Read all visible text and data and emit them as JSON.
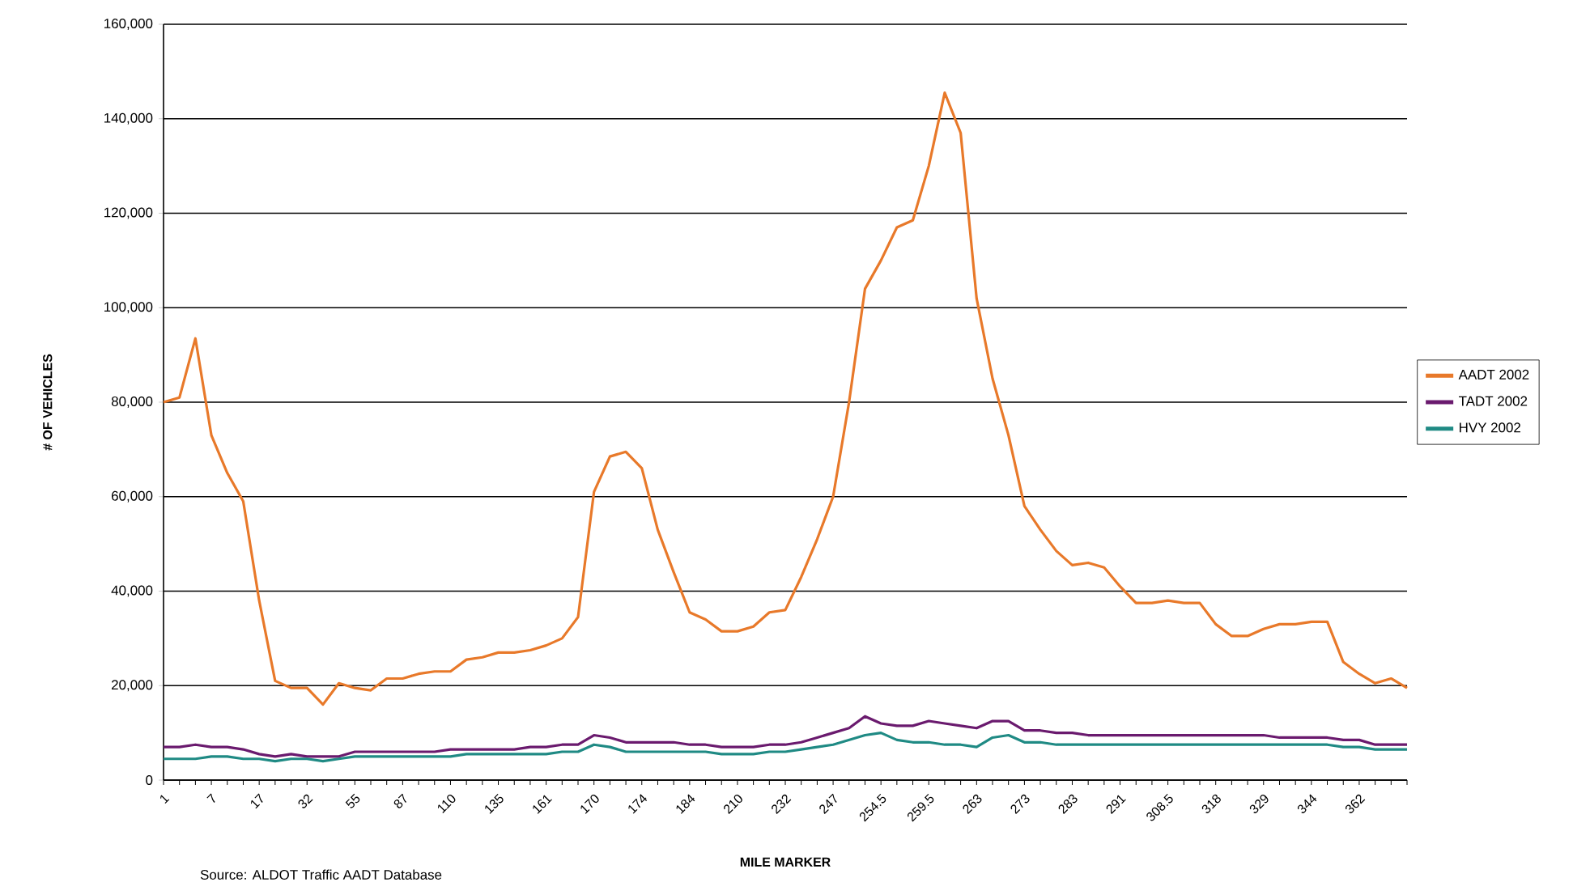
{
  "chart_data": {
    "type": "line",
    "xlabel": "MILE MARKER",
    "ylabel": "# OF VEHICLES",
    "annotations": [
      "Source: ALDOT Traffic AADT Database"
    ],
    "categories": [
      "1",
      null,
      null,
      "7",
      null,
      null,
      "17",
      null,
      null,
      "32",
      null,
      null,
      "55",
      null,
      null,
      "87",
      null,
      null,
      "110",
      null,
      null,
      "135",
      null,
      null,
      "161",
      null,
      null,
      "170",
      null,
      null,
      "174",
      null,
      null,
      "184",
      null,
      null,
      "210",
      null,
      null,
      "232",
      null,
      null,
      "247",
      null,
      null,
      "254.5",
      null,
      null,
      "259.5",
      null,
      null,
      "263",
      null,
      null,
      "273",
      null,
      null,
      "283",
      null,
      null,
      "291",
      null,
      null,
      "308.5",
      null,
      null,
      "318",
      null,
      null,
      "329",
      null,
      null,
      "344",
      null,
      null,
      "362",
      null,
      null,
      null
    ],
    "series": [
      {
        "name": "AADT 2002",
        "color": "#e8792a",
        "values": [
          80000,
          81000,
          93500,
          73000,
          65000,
          59000,
          38000,
          21000,
          19500,
          19500,
          16000,
          20500,
          19500,
          19000,
          21500,
          21500,
          22500,
          23000,
          23000,
          25500,
          26000,
          27000,
          27000,
          27500,
          28500,
          30000,
          34500,
          61000,
          68500,
          69500,
          66000,
          53000,
          44000,
          35500,
          34000,
          31500,
          31500,
          32500,
          35500,
          36000,
          43000,
          51000,
          60000,
          80000,
          104000,
          110000,
          117000,
          118500,
          130000,
          145500,
          137000,
          102000,
          85000,
          73000,
          58000,
          53000,
          48500,
          45500,
          46000,
          45000,
          41000,
          37500,
          37500,
          38000,
          37500,
          37500,
          33000,
          30500,
          30500,
          32000,
          33000,
          33000,
          33500,
          33500,
          25000,
          22500,
          20500,
          21500,
          19500
        ]
      },
      {
        "name": "TADT 2002",
        "color": "#6a1a6e",
        "values": [
          7000,
          7000,
          7500,
          7000,
          7000,
          6500,
          5500,
          5000,
          5500,
          5000,
          5000,
          5000,
          6000,
          6000,
          6000,
          6000,
          6000,
          6000,
          6500,
          6500,
          6500,
          6500,
          6500,
          7000,
          7000,
          7500,
          7500,
          9500,
          9000,
          8000,
          8000,
          8000,
          8000,
          7500,
          7500,
          7000,
          7000,
          7000,
          7500,
          7500,
          8000,
          9000,
          10000,
          11000,
          13500,
          12000,
          11500,
          11500,
          12500,
          12000,
          11500,
          11000,
          12500,
          12500,
          10500,
          10500,
          10000,
          10000,
          9500,
          9500,
          9500,
          9500,
          9500,
          9500,
          9500,
          9500,
          9500,
          9500,
          9500,
          9500,
          9000,
          9000,
          9000,
          9000,
          8500,
          8500,
          7500,
          7500,
          7500
        ]
      },
      {
        "name": "HVY 2002",
        "color": "#1f8a84",
        "values": [
          4500,
          4500,
          4500,
          5000,
          5000,
          4500,
          4500,
          4000,
          4500,
          4500,
          4000,
          4500,
          5000,
          5000,
          5000,
          5000,
          5000,
          5000,
          5000,
          5500,
          5500,
          5500,
          5500,
          5500,
          5500,
          6000,
          6000,
          7500,
          7000,
          6000,
          6000,
          6000,
          6000,
          6000,
          6000,
          5500,
          5500,
          5500,
          6000,
          6000,
          6500,
          7000,
          7500,
          8500,
          9500,
          10000,
          8500,
          8000,
          8000,
          7500,
          7500,
          7000,
          9000,
          9500,
          8000,
          8000,
          7500,
          7500,
          7500,
          7500,
          7500,
          7500,
          7500,
          7500,
          7500,
          7500,
          7500,
          7500,
          7500,
          7500,
          7500,
          7500,
          7500,
          7500,
          7000,
          7000,
          6500,
          6500,
          6500
        ]
      }
    ],
    "ylim": [
      0,
      160000
    ],
    "yticks": [
      0,
      {
        "value": 20000,
        "label": "20,000"
      },
      {
        "value": 40000,
        "label": "40,000"
      },
      {
        "value": 60000,
        "label": "60,000"
      },
      {
        "value": 80000,
        "label": "80,000"
      },
      {
        "value": 100000,
        "label": "100,000"
      },
      {
        "value": 120000,
        "label": "120,000"
      },
      {
        "value": 140000,
        "label": "140,000"
      },
      {
        "value": 160000,
        "label": "160,000"
      }
    ],
    "grid": "y",
    "legend": "right"
  }
}
